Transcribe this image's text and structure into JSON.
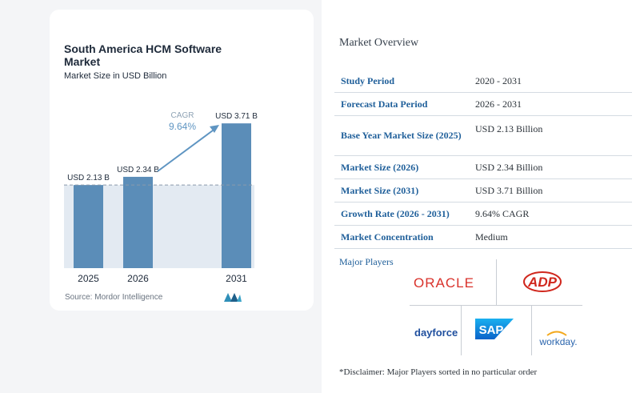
{
  "chart_data": {
    "type": "bar",
    "title": "South America HCM Software Market",
    "subtitle": "Market Size in USD Billion",
    "categories": [
      "2025",
      "2026",
      "2031"
    ],
    "values": [
      2.13,
      2.34,
      3.71
    ],
    "value_labels": [
      "USD 2.13 B",
      "USD 2.34 B",
      "USD 3.71 B"
    ],
    "cagr_label": "CAGR",
    "cagr_value": "9.64%",
    "ylim": [
      0,
      4.0
    ],
    "grid": false,
    "colors": {
      "bar": "#5b8db8",
      "bar_light": "#7fa9cc",
      "baseline_band": "#e3eaf2",
      "arrow": "#5f95c2",
      "dash": "#8a9aab"
    }
  },
  "source": "Source: Mordor Intelligence",
  "overview": {
    "title": "Market Overview",
    "rows": [
      {
        "key": "Study Period",
        "value": "2020 - 2031"
      },
      {
        "key": "Forecast Data Period",
        "value": "2026 - 2031"
      },
      {
        "key": "Base Year Market Size (2025)",
        "value": "USD 2.13 Billion"
      },
      {
        "key": "Market Size (2026)",
        "value": "USD 2.34 Billion"
      },
      {
        "key": "Market Size (2031)",
        "value": "USD 3.71 Billion"
      },
      {
        "key": "Growth Rate (2026 - 2031)",
        "value": "9.64% CAGR"
      },
      {
        "key": "Market Concentration",
        "value": "Medium"
      }
    ]
  },
  "players": {
    "title": "Major Players",
    "logos": [
      "ORACLE",
      "ADP",
      "dayforce",
      "SAP",
      "workday."
    ],
    "disclaimer": "*Disclaimer: Major Players sorted in no particular order"
  }
}
